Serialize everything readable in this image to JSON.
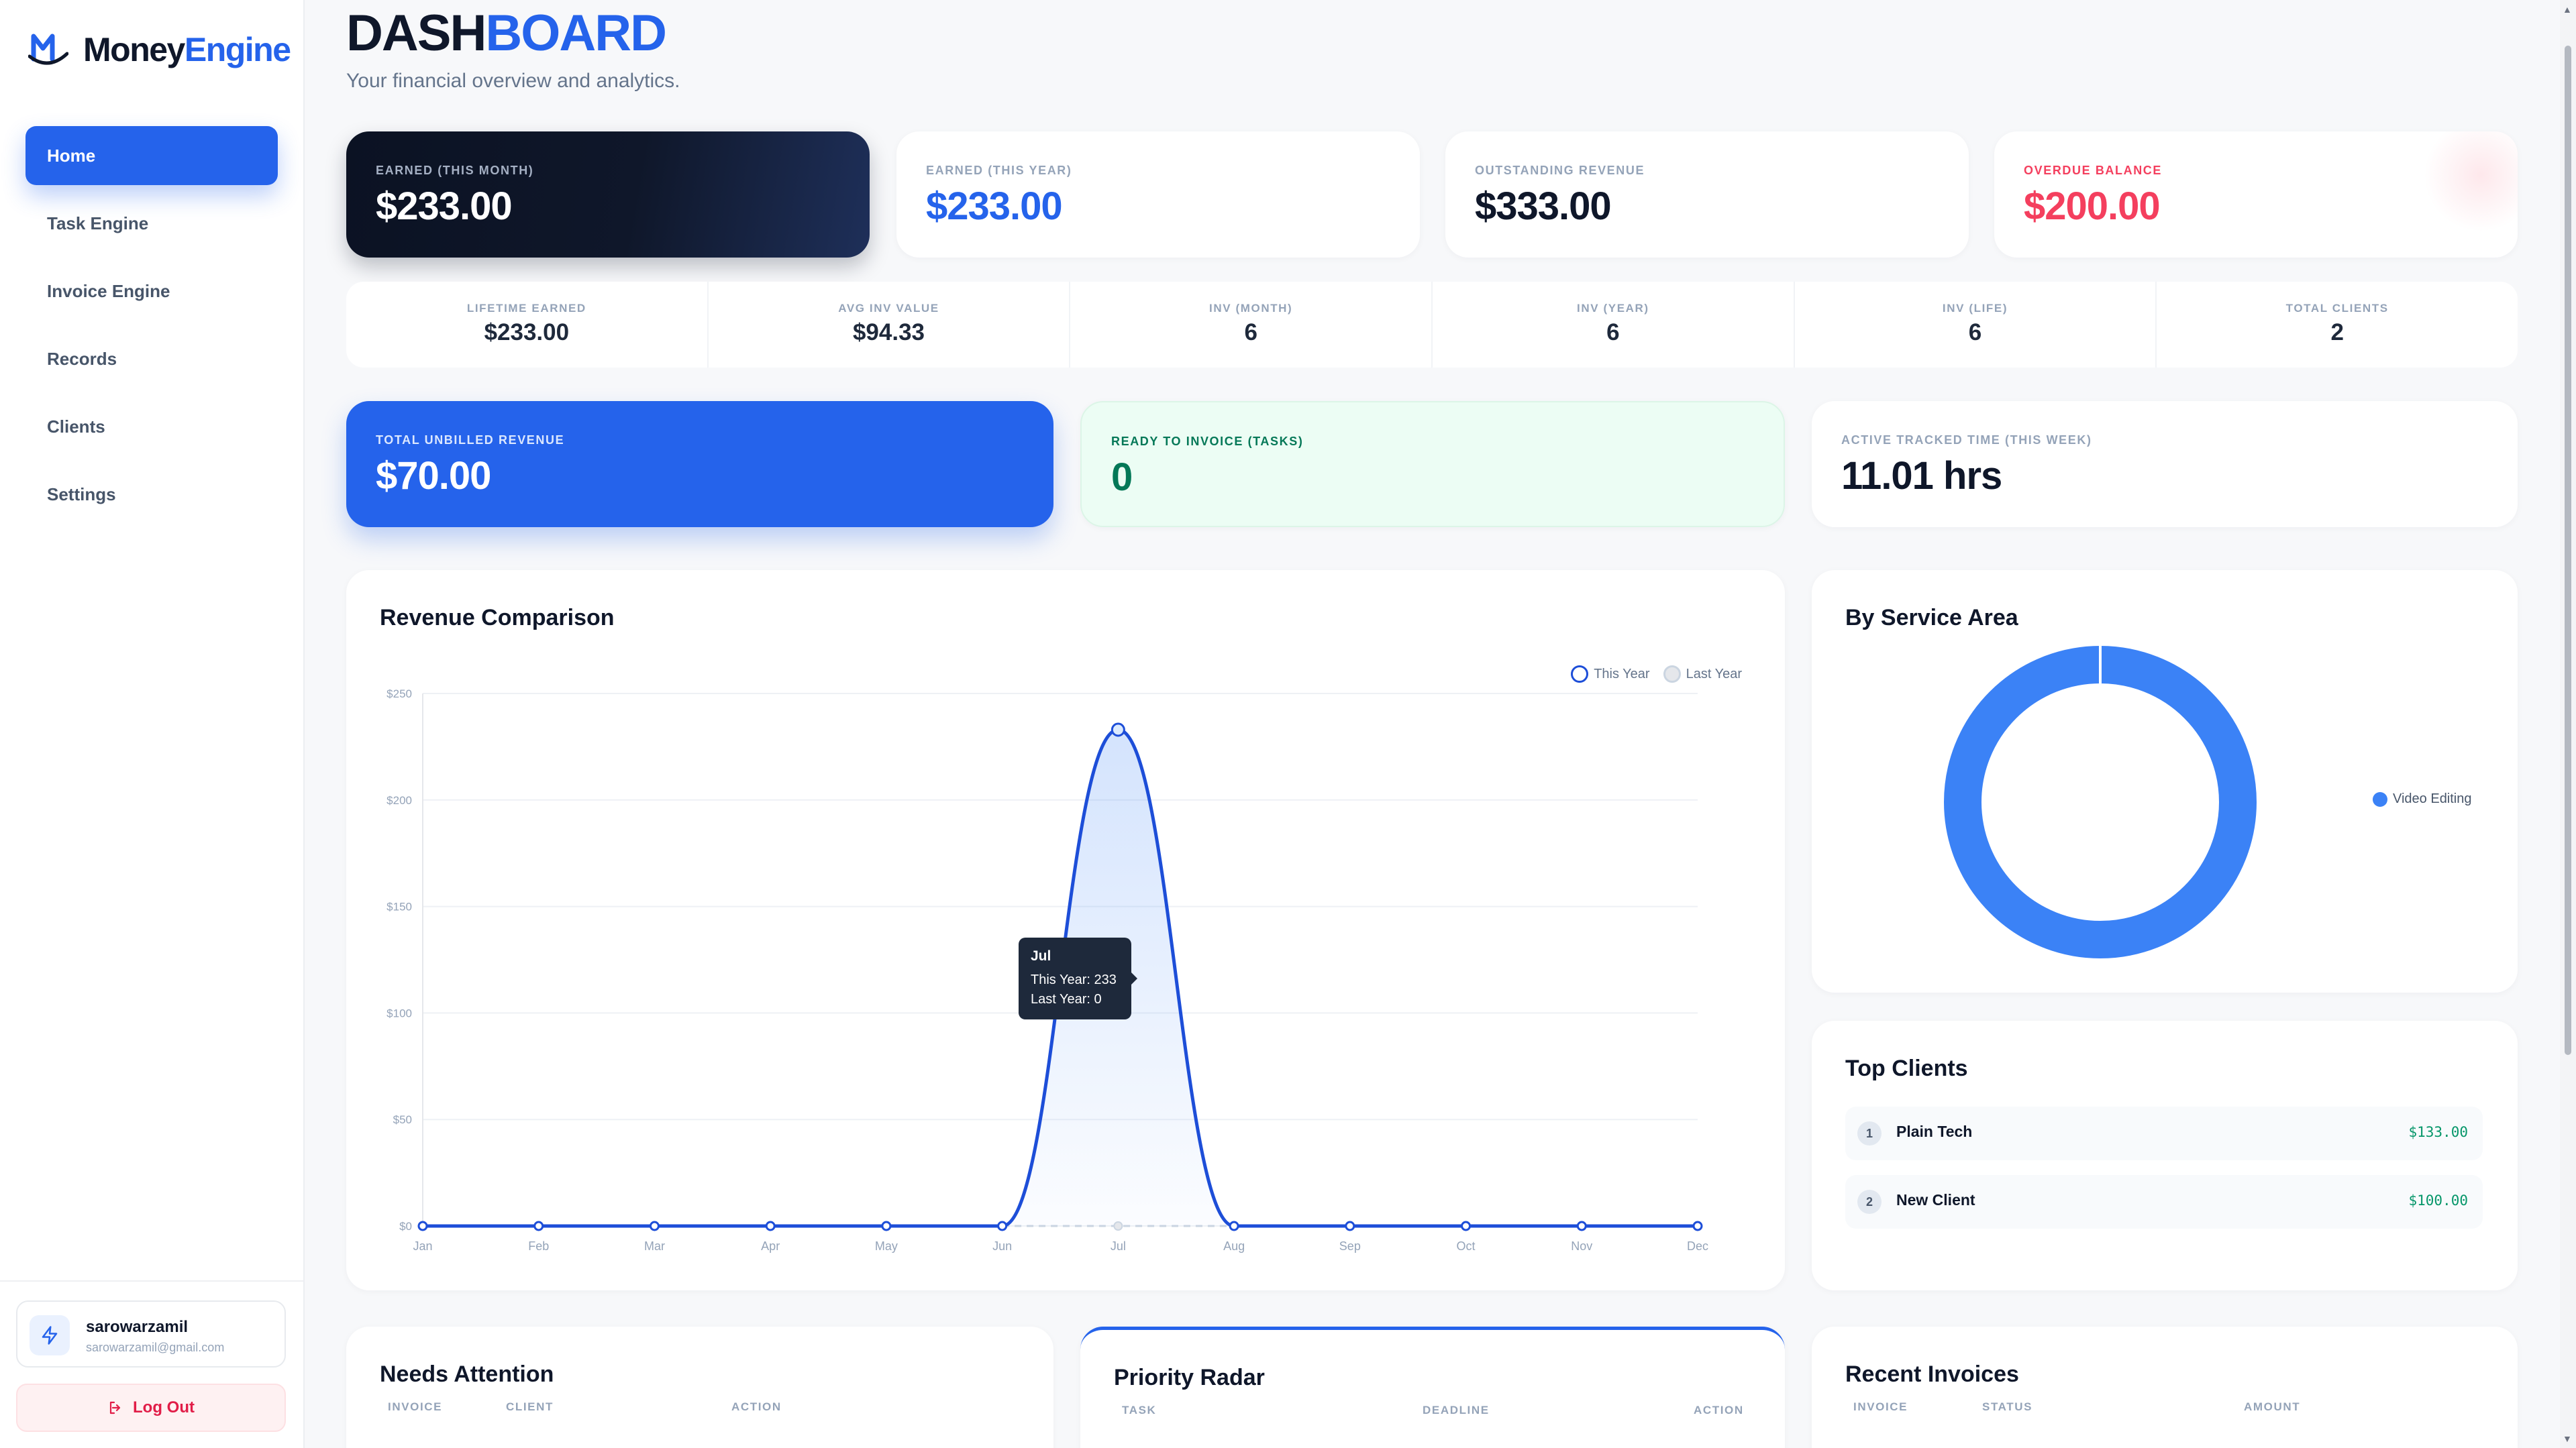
{
  "brand": {
    "name_part1": "Money",
    "name_part2": "Engine",
    "accent": "#2563eb"
  },
  "sidebar": {
    "items": [
      {
        "label": "Home",
        "icon": "home",
        "active": true
      },
      {
        "label": "Task Engine",
        "icon": "tasks"
      },
      {
        "label": "Invoice Engine",
        "icon": "invoice"
      },
      {
        "label": "Records",
        "icon": "records"
      },
      {
        "label": "Clients",
        "icon": "clients"
      },
      {
        "label": "Settings",
        "icon": "settings"
      }
    ],
    "user": {
      "name": "sarowarzamil",
      "email": "sarowarzamil@gmail.com",
      "icon": "lightning-icon"
    },
    "logout_label": "Log Out"
  },
  "header": {
    "title_part1": "DASH",
    "title_part2": "BOARD",
    "subtitle": "Your financial overview and analytics."
  },
  "kpis": [
    {
      "label": "EARNED (THIS MONTH)",
      "value": "$233.00"
    },
    {
      "label": "EARNED (THIS YEAR)",
      "value": "$233.00"
    },
    {
      "label": "OUTSTANDING REVENUE",
      "value": "$333.00"
    },
    {
      "label": "OVERDUE BALANCE",
      "value": "$200.00"
    }
  ],
  "stats": [
    {
      "label": "LIFETIME EARNED",
      "value": "$233.00"
    },
    {
      "label": "AVG INV VALUE",
      "value": "$94.33"
    },
    {
      "label": "INV (MONTH)",
      "value": "6"
    },
    {
      "label": "INV (YEAR)",
      "value": "6"
    },
    {
      "label": "INV (LIFE)",
      "value": "6"
    },
    {
      "label": "TOTAL CLIENTS",
      "value": "2"
    }
  ],
  "highlights": [
    {
      "label": "TOTAL UNBILLED REVENUE",
      "value": "$70.00"
    },
    {
      "label": "READY TO INVOICE (TASKS)",
      "value": "0"
    },
    {
      "label": "ACTIVE TRACKED TIME (THIS WEEK)",
      "value": "11.01 hrs"
    }
  ],
  "revenue": {
    "title": "Revenue Comparison",
    "tooltip": {
      "month": "Jul",
      "line1": "This Year: 233",
      "line2": "Last Year: 0"
    }
  },
  "chart_data": {
    "type": "line",
    "x": [
      "Jan",
      "Feb",
      "Mar",
      "Apr",
      "May",
      "Jun",
      "Jul",
      "Aug",
      "Sep",
      "Oct",
      "Nov",
      "Dec"
    ],
    "series": [
      {
        "name": "This Year",
        "values": [
          0,
          0,
          0,
          0,
          0,
          0,
          233,
          0,
          0,
          0,
          0,
          0
        ],
        "color": "#1d4ed8"
      },
      {
        "name": "Last Year",
        "values": [
          0,
          0,
          0,
          0,
          0,
          0,
          0,
          0,
          0,
          0,
          0,
          0
        ],
        "color": "#cbd5e1"
      }
    ],
    "ylim": [
      0,
      250
    ],
    "yticks": [
      0,
      50,
      100,
      150,
      200,
      250
    ],
    "ytick_labels": [
      "$0",
      "$50",
      "$100",
      "$150",
      "$200",
      "$250"
    ],
    "grid": true,
    "legend": "top-right"
  },
  "service_area": {
    "title": "By Service Area",
    "chart_data": {
      "type": "pie",
      "labels": [
        "Video Editing"
      ],
      "values": [
        100
      ],
      "colors": [
        "#3b82f6"
      ]
    }
  },
  "top_clients": {
    "title": "Top Clients",
    "rows": [
      {
        "rank": "1",
        "name": "Plain Tech",
        "amount": "$133.00"
      },
      {
        "rank": "2",
        "name": "New Client",
        "amount": "$100.00"
      }
    ]
  },
  "needs_attention": {
    "title": "Needs Attention",
    "columns": [
      "INVOICE",
      "CLIENT",
      "ACTION"
    ]
  },
  "priority_radar": {
    "title": "Priority Radar",
    "columns": [
      "TASK",
      "DEADLINE",
      "ACTION"
    ]
  },
  "recent_invoices": {
    "title": "Recent Invoices",
    "columns": [
      "INVOICE",
      "STATUS",
      "AMOUNT"
    ]
  }
}
